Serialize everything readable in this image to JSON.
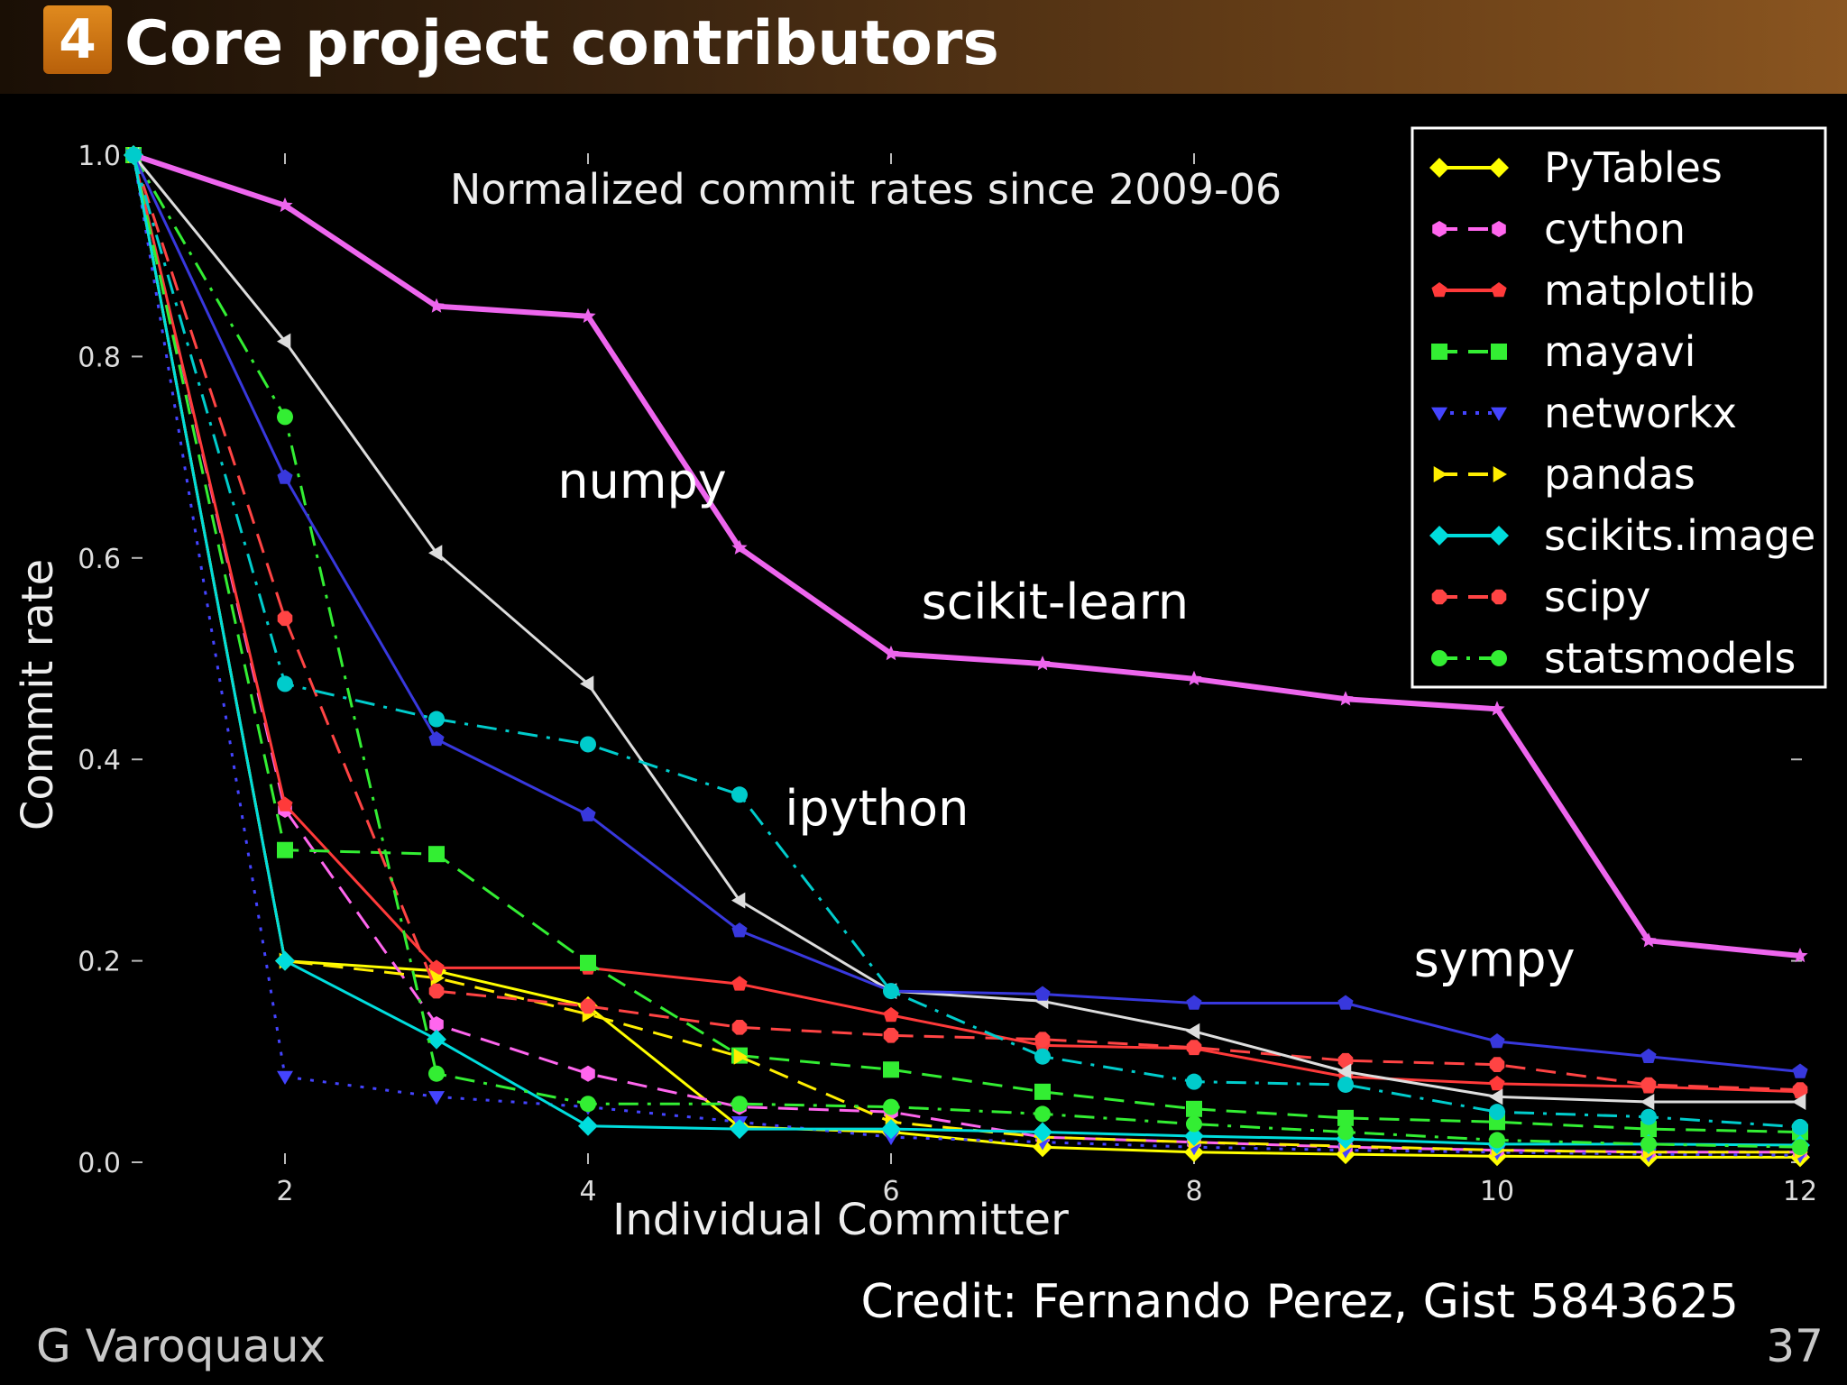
{
  "slide": {
    "section_number": "4",
    "title": "Core project contributors",
    "credit": "Credit: Fernando Perez, Gist 5843625",
    "author": "G Varoquaux",
    "page_number": "37"
  },
  "chart_data": {
    "type": "line",
    "title": "Normalized commit rates since 2009-06",
    "xlabel": "Individual Committer",
    "ylabel": "Commit rate",
    "xlim": [
      1,
      12
    ],
    "ylim": [
      0,
      1.0
    ],
    "xticks": [
      "2",
      "4",
      "6",
      "8",
      "10",
      "12"
    ],
    "yticks": [
      "0.0",
      "0.2",
      "0.4",
      "0.6",
      "0.8",
      "1.0"
    ],
    "grid": false,
    "legend": "top-right",
    "annotations": [
      {
        "text": "numpy",
        "x": 3.8,
        "y": 0.66
      },
      {
        "text": "scikit-learn",
        "x": 6.2,
        "y": 0.54
      },
      {
        "text": "ipython",
        "x": 5.3,
        "y": 0.335
      },
      {
        "text": "sympy",
        "x": 9.45,
        "y": 0.185
      }
    ],
    "x": [
      1,
      2,
      3,
      4,
      5,
      6,
      7,
      8,
      9,
      10,
      11,
      12
    ],
    "series": [
      {
        "name": "PyTables",
        "color": "#ffff00",
        "dash": "solid",
        "marker": "diamond",
        "legend": true,
        "values": [
          1.0,
          0.2,
          0.19,
          0.155,
          0.035,
          0.03,
          0.015,
          0.01,
          0.008,
          0.006,
          0.005,
          0.005
        ]
      },
      {
        "name": "cython",
        "color": "#ff66ee",
        "dash": "dashed",
        "marker": "hexagon",
        "legend": true,
        "values": [
          1.0,
          0.35,
          0.137,
          0.088,
          0.055,
          0.05,
          0.025,
          0.02,
          0.015,
          0.012,
          0.01,
          0.01
        ]
      },
      {
        "name": "matplotlib",
        "color": "#ff3a3a",
        "dash": "solid",
        "marker": "pentagon",
        "legend": true,
        "values": [
          1.0,
          0.355,
          0.193,
          0.193,
          0.177,
          0.146,
          0.116,
          0.113,
          0.085,
          0.078,
          0.075,
          0.07
        ]
      },
      {
        "name": "mayavi",
        "color": "#33ee33",
        "dash": "dashed",
        "marker": "square",
        "legend": true,
        "values": [
          1.0,
          0.31,
          0.306,
          0.198,
          0.106,
          0.092,
          0.07,
          0.053,
          0.044,
          0.04,
          0.033,
          0.03
        ]
      },
      {
        "name": "networkx",
        "color": "#4444ff",
        "dash": "dotted",
        "marker": "triangle-down",
        "legend": true,
        "values": [
          1.0,
          0.085,
          0.065,
          0.055,
          0.04,
          0.025,
          0.02,
          0.015,
          0.012,
          0.01,
          0.008,
          0.007
        ]
      },
      {
        "name": "pandas",
        "color": "#ffee00",
        "dash": "dashed",
        "marker": "triangle-right",
        "legend": true,
        "values": [
          1.0,
          0.2,
          0.183,
          0.147,
          0.105,
          0.04,
          0.025,
          0.02,
          0.016,
          0.012,
          0.01,
          0.01
        ]
      },
      {
        "name": "scikits.image",
        "color": "#00dddd",
        "dash": "solid",
        "marker": "diamond",
        "legend": true,
        "values": [
          1.0,
          0.2,
          0.122,
          0.036,
          0.033,
          0.033,
          0.03,
          0.026,
          0.023,
          0.018,
          0.018,
          0.017
        ]
      },
      {
        "name": "scipy",
        "color": "#ff4444",
        "dash": "dashed",
        "marker": "octagon",
        "legend": true,
        "values": [
          1.0,
          0.54,
          0.17,
          0.155,
          0.134,
          0.126,
          0.122,
          0.114,
          0.101,
          0.097,
          0.077,
          0.072
        ]
      },
      {
        "name": "statsmodels",
        "color": "#33ee33",
        "dash": "dashdot",
        "marker": "circle",
        "legend": true,
        "values": [
          1.0,
          0.74,
          0.088,
          0.058,
          0.058,
          0.055,
          0.048,
          0.038,
          0.03,
          0.022,
          0.018,
          0.015
        ]
      },
      {
        "name": "",
        "color": "#ee66ee",
        "dash": "solid",
        "marker": "star",
        "legend": false,
        "thick": true,
        "values": [
          1.0,
          0.95,
          0.85,
          0.84,
          0.61,
          0.505,
          0.495,
          0.48,
          0.46,
          0.45,
          0.22,
          0.205
        ]
      },
      {
        "name": "",
        "color": "#dddddd",
        "dash": "solid",
        "marker": "triangle-left",
        "legend": false,
        "values": [
          1.0,
          0.815,
          0.605,
          0.475,
          0.26,
          0.17,
          0.16,
          0.13,
          0.09,
          0.065,
          0.06,
          0.06
        ]
      },
      {
        "name": "",
        "color": "#3838dd",
        "dash": "solid",
        "marker": "pentagon",
        "legend": false,
        "values": [
          1.0,
          0.68,
          0.42,
          0.345,
          0.23,
          0.17,
          0.167,
          0.158,
          0.158,
          0.12,
          0.105,
          0.09
        ]
      },
      {
        "name": "",
        "color": "#00cccc",
        "dash": "dashdot",
        "marker": "circle",
        "legend": false,
        "values": [
          1.0,
          0.475,
          0.44,
          0.415,
          0.365,
          0.17,
          0.105,
          0.08,
          0.077,
          0.05,
          0.045,
          0.035
        ]
      }
    ]
  }
}
